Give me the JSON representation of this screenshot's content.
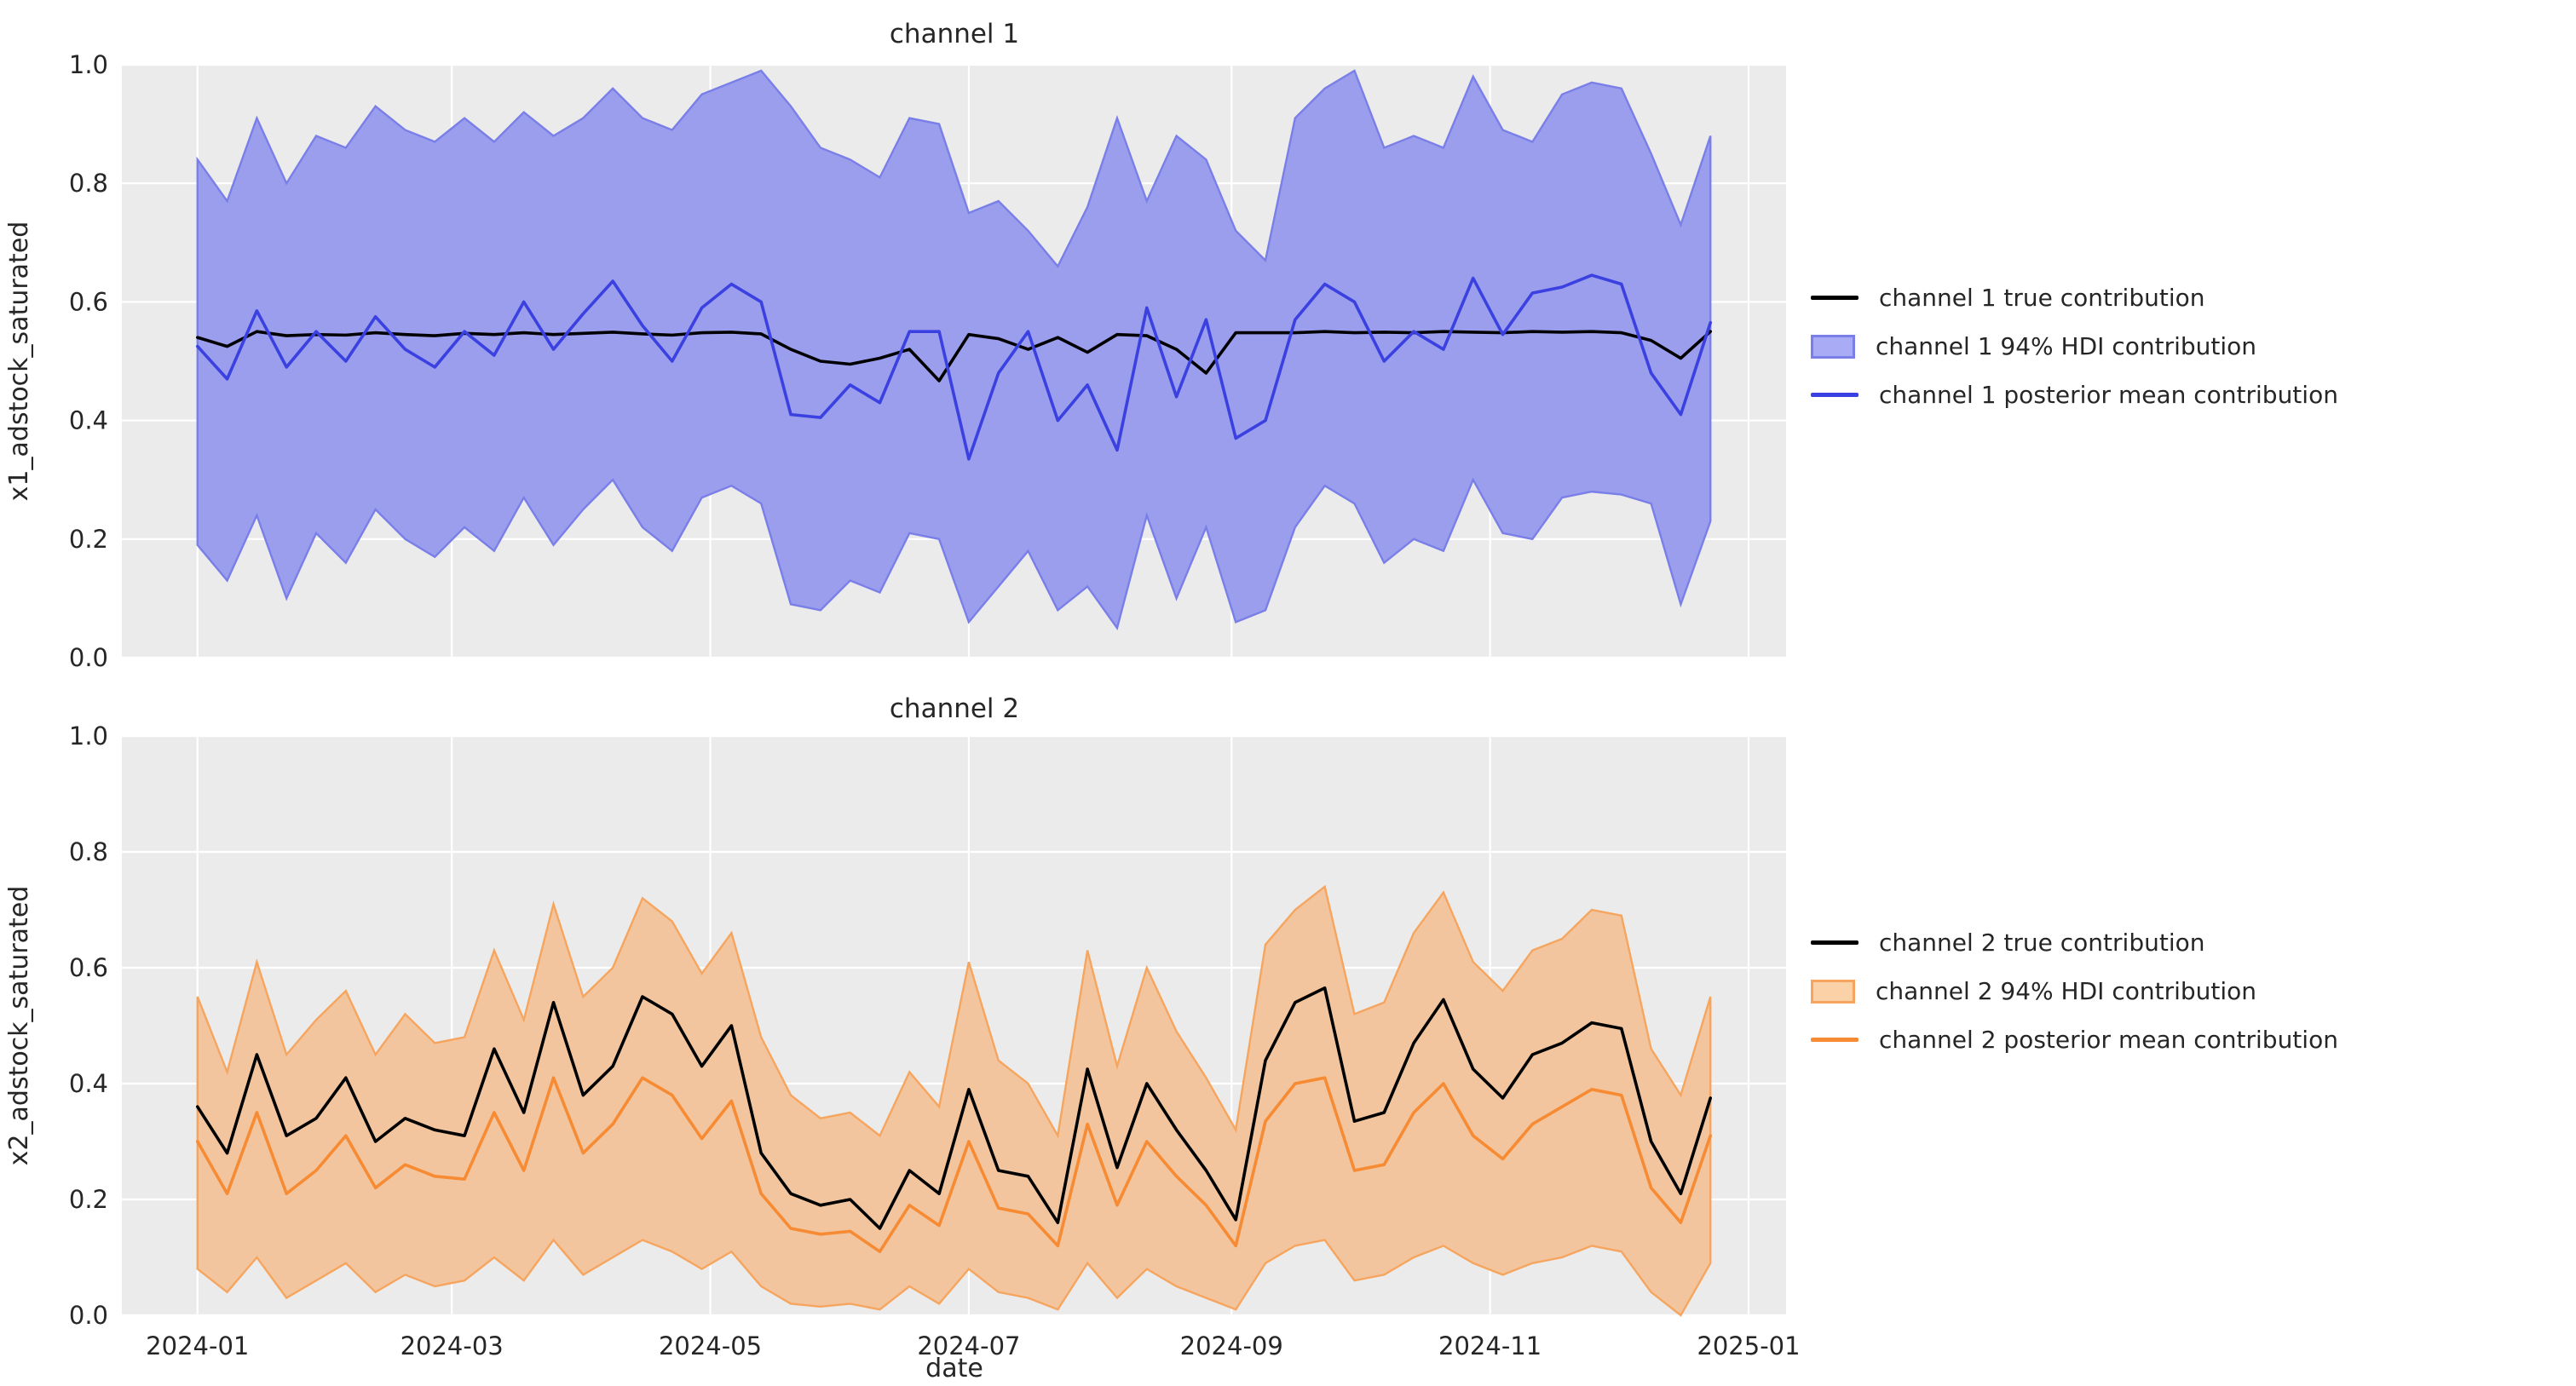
{
  "figure": {
    "xlabel": "date",
    "x_tick_labels": [
      "2024-01",
      "2024-03",
      "2024-05",
      "2024-07",
      "2024-09",
      "2024-11",
      "2025-01"
    ],
    "y_tick_labels": [
      "0.0",
      "0.2",
      "0.4",
      "0.6",
      "0.8",
      "1.0"
    ]
  },
  "style": {
    "plot_bg": "#EBEBEB",
    "grid_color": "#FFFFFF",
    "text_color": "#262626",
    "true_line_color": "#000000",
    "channel1_line_color": "#3A41E0",
    "channel1_band_fill": "#9A9EED",
    "channel1_band_edge": "#7A7FE8",
    "channel1_legend_fill": "#A9ACF5",
    "channel2_line_color": "#F78B33",
    "channel2_band_fill": "#F2C59E",
    "channel2_band_edge": "#F6A55F",
    "channel2_legend_fill": "#FBD2A8"
  },
  "chart_data": [
    {
      "type": "line",
      "title": "channel 1",
      "ylabel": "x1_adstock_saturated",
      "xlabel": "",
      "ylim": [
        0.0,
        1.0
      ],
      "grid": true,
      "legend_position": "center right outside",
      "x": [
        "2024-01-01",
        "2024-01-08",
        "2024-01-15",
        "2024-01-22",
        "2024-01-29",
        "2024-02-05",
        "2024-02-12",
        "2024-02-19",
        "2024-02-26",
        "2024-03-04",
        "2024-03-11",
        "2024-03-18",
        "2024-03-25",
        "2024-04-01",
        "2024-04-08",
        "2024-04-15",
        "2024-04-22",
        "2024-04-29",
        "2024-05-06",
        "2024-05-13",
        "2024-05-20",
        "2024-05-27",
        "2024-06-03",
        "2024-06-10",
        "2024-06-17",
        "2024-06-24",
        "2024-07-01",
        "2024-07-08",
        "2024-07-15",
        "2024-07-22",
        "2024-07-29",
        "2024-08-05",
        "2024-08-12",
        "2024-08-19",
        "2024-08-26",
        "2024-09-02",
        "2024-09-09",
        "2024-09-16",
        "2024-09-23",
        "2024-09-30",
        "2024-10-07",
        "2024-10-14",
        "2024-10-21",
        "2024-10-28",
        "2024-11-04",
        "2024-11-11",
        "2024-11-18",
        "2024-11-25",
        "2024-12-02",
        "2024-12-09",
        "2024-12-16",
        "2024-12-23"
      ],
      "series": [
        {
          "name": "channel 1 true contribution",
          "style": "line",
          "color": "#000000",
          "values": [
            0.54,
            0.525,
            0.55,
            0.543,
            0.545,
            0.544,
            0.548,
            0.545,
            0.543,
            0.547,
            0.545,
            0.548,
            0.545,
            0.547,
            0.549,
            0.546,
            0.544,
            0.548,
            0.549,
            0.546,
            0.52,
            0.5,
            0.495,
            0.505,
            0.52,
            0.467,
            0.545,
            0.538,
            0.52,
            0.54,
            0.515,
            0.545,
            0.543,
            0.52,
            0.48,
            0.548,
            0.548,
            0.548,
            0.55,
            0.548,
            0.549,
            0.548,
            0.55,
            0.549,
            0.548,
            0.55,
            0.549,
            0.55,
            0.548,
            0.535,
            0.505,
            0.55
          ]
        },
        {
          "name": "channel 1 94% HDI contribution",
          "style": "band",
          "fill": "#9A9EED",
          "edge": "#7A7FE8",
          "legend_fill": "#A9ACF5",
          "upper": [
            0.84,
            0.77,
            0.91,
            0.8,
            0.88,
            0.86,
            0.93,
            0.89,
            0.87,
            0.91,
            0.87,
            0.92,
            0.88,
            0.91,
            0.96,
            0.91,
            0.89,
            0.95,
            0.97,
            0.99,
            0.93,
            0.86,
            0.84,
            0.81,
            0.91,
            0.9,
            0.75,
            0.77,
            0.72,
            0.66,
            0.76,
            0.91,
            0.77,
            0.88,
            0.84,
            0.72,
            0.67,
            0.91,
            0.96,
            0.99,
            0.86,
            0.88,
            0.86,
            0.98,
            0.89,
            0.87,
            0.95,
            0.97,
            0.96,
            0.85,
            0.73,
            0.88
          ],
          "lower": [
            0.19,
            0.13,
            0.24,
            0.1,
            0.21,
            0.16,
            0.25,
            0.2,
            0.17,
            0.22,
            0.18,
            0.27,
            0.19,
            0.25,
            0.3,
            0.22,
            0.18,
            0.27,
            0.29,
            0.26,
            0.09,
            0.08,
            0.13,
            0.11,
            0.21,
            0.2,
            0.06,
            0.12,
            0.18,
            0.08,
            0.12,
            0.05,
            0.24,
            0.1,
            0.22,
            0.06,
            0.08,
            0.22,
            0.29,
            0.26,
            0.16,
            0.2,
            0.18,
            0.3,
            0.21,
            0.2,
            0.27,
            0.28,
            0.275,
            0.26,
            0.09,
            0.23
          ]
        },
        {
          "name": "channel 1 posterior mean contribution",
          "style": "line",
          "color": "#3A41E0",
          "values": [
            0.525,
            0.47,
            0.585,
            0.49,
            0.55,
            0.5,
            0.575,
            0.52,
            0.49,
            0.55,
            0.51,
            0.6,
            0.52,
            0.58,
            0.635,
            0.56,
            0.5,
            0.59,
            0.63,
            0.6,
            0.41,
            0.405,
            0.46,
            0.43,
            0.55,
            0.55,
            0.335,
            0.48,
            0.55,
            0.4,
            0.46,
            0.35,
            0.59,
            0.44,
            0.57,
            0.37,
            0.4,
            0.57,
            0.63,
            0.6,
            0.5,
            0.55,
            0.52,
            0.64,
            0.545,
            0.615,
            0.625,
            0.645,
            0.63,
            0.48,
            0.41,
            0.565
          ]
        }
      ]
    },
    {
      "type": "line",
      "title": "channel 2",
      "ylabel": "x2_adstock_saturated",
      "xlabel": "date",
      "ylim": [
        0.0,
        1.0
      ],
      "grid": true,
      "legend_position": "center right outside",
      "x": [
        "2024-01-01",
        "2024-01-08",
        "2024-01-15",
        "2024-01-22",
        "2024-01-29",
        "2024-02-05",
        "2024-02-12",
        "2024-02-19",
        "2024-02-26",
        "2024-03-04",
        "2024-03-11",
        "2024-03-18",
        "2024-03-25",
        "2024-04-01",
        "2024-04-08",
        "2024-04-15",
        "2024-04-22",
        "2024-04-29",
        "2024-05-06",
        "2024-05-13",
        "2024-05-20",
        "2024-05-27",
        "2024-06-03",
        "2024-06-10",
        "2024-06-17",
        "2024-06-24",
        "2024-07-01",
        "2024-07-08",
        "2024-07-15",
        "2024-07-22",
        "2024-07-29",
        "2024-08-05",
        "2024-08-12",
        "2024-08-19",
        "2024-08-26",
        "2024-09-02",
        "2024-09-09",
        "2024-09-16",
        "2024-09-23",
        "2024-09-30",
        "2024-10-07",
        "2024-10-14",
        "2024-10-21",
        "2024-10-28",
        "2024-11-04",
        "2024-11-11",
        "2024-11-18",
        "2024-11-25",
        "2024-12-02",
        "2024-12-09",
        "2024-12-16",
        "2024-12-23"
      ],
      "series": [
        {
          "name": "channel 2 true contribution",
          "style": "line",
          "color": "#000000",
          "values": [
            0.36,
            0.28,
            0.45,
            0.31,
            0.34,
            0.41,
            0.3,
            0.34,
            0.32,
            0.31,
            0.46,
            0.35,
            0.54,
            0.38,
            0.43,
            0.55,
            0.52,
            0.43,
            0.5,
            0.28,
            0.21,
            0.19,
            0.2,
            0.15,
            0.25,
            0.21,
            0.39,
            0.25,
            0.24,
            0.16,
            0.425,
            0.255,
            0.4,
            0.32,
            0.25,
            0.165,
            0.44,
            0.54,
            0.565,
            0.335,
            0.35,
            0.47,
            0.545,
            0.425,
            0.375,
            0.45,
            0.47,
            0.505,
            0.495,
            0.3,
            0.21,
            0.375
          ]
        },
        {
          "name": "channel 2 94% HDI contribution",
          "style": "band",
          "fill": "#F2C59E",
          "edge": "#F6A55F",
          "legend_fill": "#FBD2A8",
          "upper": [
            0.55,
            0.42,
            0.61,
            0.45,
            0.51,
            0.56,
            0.45,
            0.52,
            0.47,
            0.48,
            0.63,
            0.51,
            0.71,
            0.55,
            0.6,
            0.72,
            0.68,
            0.59,
            0.66,
            0.48,
            0.38,
            0.34,
            0.35,
            0.31,
            0.42,
            0.36,
            0.61,
            0.44,
            0.4,
            0.31,
            0.63,
            0.43,
            0.6,
            0.49,
            0.41,
            0.32,
            0.64,
            0.7,
            0.74,
            0.52,
            0.54,
            0.66,
            0.73,
            0.61,
            0.56,
            0.63,
            0.65,
            0.7,
            0.69,
            0.46,
            0.38,
            0.55
          ],
          "lower": [
            0.08,
            0.04,
            0.1,
            0.03,
            0.06,
            0.09,
            0.04,
            0.07,
            0.05,
            0.06,
            0.1,
            0.06,
            0.13,
            0.07,
            0.1,
            0.13,
            0.11,
            0.08,
            0.11,
            0.05,
            0.02,
            0.015,
            0.02,
            0.01,
            0.05,
            0.02,
            0.08,
            0.04,
            0.03,
            0.01,
            0.09,
            0.03,
            0.08,
            0.05,
            0.03,
            0.01,
            0.09,
            0.12,
            0.13,
            0.06,
            0.07,
            0.1,
            0.12,
            0.09,
            0.07,
            0.09,
            0.1,
            0.12,
            0.11,
            0.04,
            0.0,
            0.09
          ]
        },
        {
          "name": "channel 2 posterior mean contribution",
          "style": "line",
          "color": "#F78B33",
          "values": [
            0.3,
            0.21,
            0.35,
            0.21,
            0.25,
            0.31,
            0.22,
            0.26,
            0.24,
            0.235,
            0.35,
            0.25,
            0.41,
            0.28,
            0.33,
            0.41,
            0.38,
            0.305,
            0.37,
            0.21,
            0.15,
            0.14,
            0.145,
            0.11,
            0.19,
            0.155,
            0.3,
            0.185,
            0.175,
            0.12,
            0.33,
            0.19,
            0.3,
            0.24,
            0.19,
            0.12,
            0.335,
            0.4,
            0.41,
            0.25,
            0.26,
            0.35,
            0.4,
            0.31,
            0.27,
            0.33,
            0.36,
            0.39,
            0.38,
            0.22,
            0.16,
            0.31
          ]
        }
      ]
    }
  ]
}
